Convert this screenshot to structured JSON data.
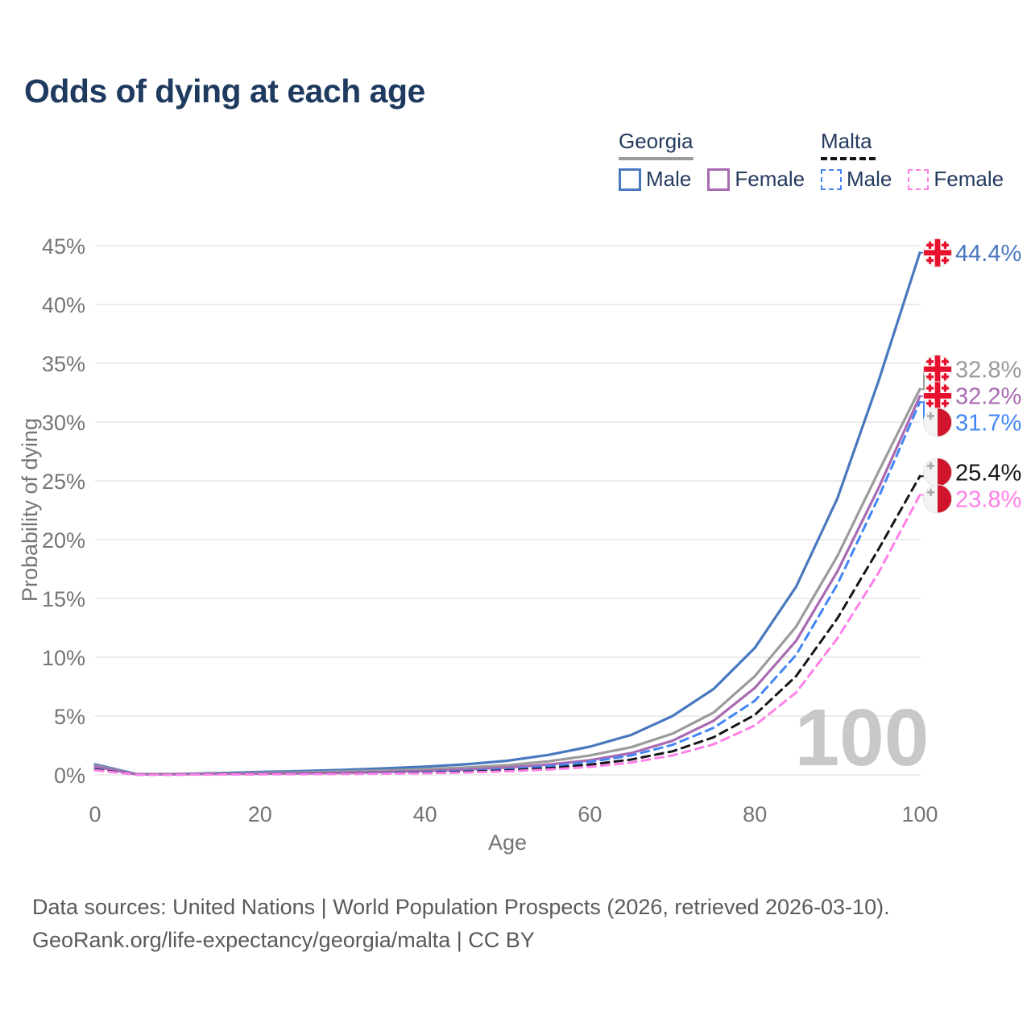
{
  "title": "Odds of dying at each age",
  "legend": {
    "groups": [
      {
        "name": "Georgia",
        "line_style": "solid",
        "underline_color": "#9b9b9b",
        "items": [
          {
            "label": "Male",
            "color": "#4878be",
            "dash": false
          },
          {
            "label": "Female",
            "color": "#a96ab2",
            "dash": false
          }
        ]
      },
      {
        "name": "Malta",
        "line_style": "dashed",
        "underline_color": "#15151a",
        "items": [
          {
            "label": "Male",
            "color": "#4286f5",
            "dash": true
          },
          {
            "label": "Female",
            "color": "#ff80e8",
            "dash": true
          }
        ]
      }
    ]
  },
  "watermark": "100",
  "footer": {
    "line1": "Data sources: United Nations | World Population Prospects (2026, retrieved 2026-03-10).",
    "line2": "GeoRank.org/life-expectancy/georgia/malta | CC BY"
  },
  "chart_data": {
    "type": "line",
    "title": "Odds of dying at each age",
    "xlabel": "Age",
    "ylabel": "Probability of dying",
    "xlim": [
      0,
      100
    ],
    "ylim": [
      0,
      45
    ],
    "grid": true,
    "legend_position": "top-right",
    "x_ticks": [
      0,
      20,
      40,
      60,
      80,
      100
    ],
    "x_tick_labels": [
      "0",
      "20",
      "40",
      "60",
      "80",
      "100"
    ],
    "y_ticks": [
      0,
      5,
      10,
      15,
      20,
      25,
      30,
      35,
      40,
      45
    ],
    "y_tick_labels": [
      "0%",
      "5%",
      "10%",
      "15%",
      "20%",
      "25%",
      "30%",
      "35%",
      "40%",
      "45%"
    ],
    "x": [
      0,
      5,
      10,
      15,
      20,
      25,
      30,
      35,
      40,
      45,
      50,
      55,
      60,
      65,
      70,
      75,
      80,
      85,
      90,
      95,
      100
    ],
    "series": [
      {
        "name": "Georgia Male",
        "country": "Georgia",
        "sex": "Male",
        "color": "#4878be",
        "dash": false,
        "end_label": "44.4%",
        "values": [
          0.9,
          0.06,
          0.07,
          0.15,
          0.25,
          0.32,
          0.42,
          0.55,
          0.7,
          0.9,
          1.2,
          1.7,
          2.4,
          3.4,
          5.0,
          7.3,
          10.8,
          16.0,
          23.5,
          33.5,
          44.4
        ]
      },
      {
        "name": "Georgia (both sexes)",
        "country": "Georgia",
        "sex": "All",
        "color": "#9b9b9b",
        "dash": false,
        "end_label": "32.8%",
        "values": [
          0.8,
          0.05,
          0.06,
          0.11,
          0.17,
          0.22,
          0.28,
          0.37,
          0.48,
          0.62,
          0.82,
          1.15,
          1.65,
          2.35,
          3.5,
          5.3,
          8.4,
          12.6,
          18.6,
          25.8,
          32.8
        ]
      },
      {
        "name": "Georgia Female",
        "country": "Georgia",
        "sex": "Female",
        "color": "#a96ab2",
        "dash": false,
        "end_label": "32.2%",
        "values": [
          0.7,
          0.05,
          0.05,
          0.08,
          0.1,
          0.13,
          0.17,
          0.24,
          0.33,
          0.45,
          0.62,
          0.88,
          1.25,
          1.85,
          2.9,
          4.6,
          7.4,
          11.4,
          17.3,
          24.4,
          32.2
        ]
      },
      {
        "name": "Malta Male",
        "country": "Malta",
        "sex": "Male",
        "color": "#4286f5",
        "dash": true,
        "end_label": "31.7%",
        "values": [
          0.5,
          0.03,
          0.03,
          0.05,
          0.08,
          0.1,
          0.13,
          0.17,
          0.23,
          0.33,
          0.48,
          0.72,
          1.1,
          1.65,
          2.55,
          4.0,
          6.3,
          10.2,
          16.2,
          23.6,
          31.7
        ]
      },
      {
        "name": "Malta (both sexes)",
        "country": "Malta",
        "sex": "All",
        "color": "#15151a",
        "dash": true,
        "end_label": "25.4%",
        "values": [
          0.45,
          0.03,
          0.03,
          0.04,
          0.06,
          0.08,
          0.1,
          0.13,
          0.18,
          0.26,
          0.38,
          0.57,
          0.87,
          1.3,
          2.0,
          3.2,
          5.1,
          8.4,
          13.3,
          19.2,
          25.4
        ]
      },
      {
        "name": "Malta Female",
        "country": "Malta",
        "sex": "Female",
        "color": "#ff80e8",
        "dash": true,
        "end_label": "23.8%",
        "values": [
          0.4,
          0.02,
          0.02,
          0.03,
          0.05,
          0.06,
          0.08,
          0.1,
          0.14,
          0.2,
          0.3,
          0.45,
          0.68,
          1.05,
          1.65,
          2.6,
          4.2,
          7.0,
          11.6,
          17.2,
          23.8
        ]
      }
    ]
  }
}
